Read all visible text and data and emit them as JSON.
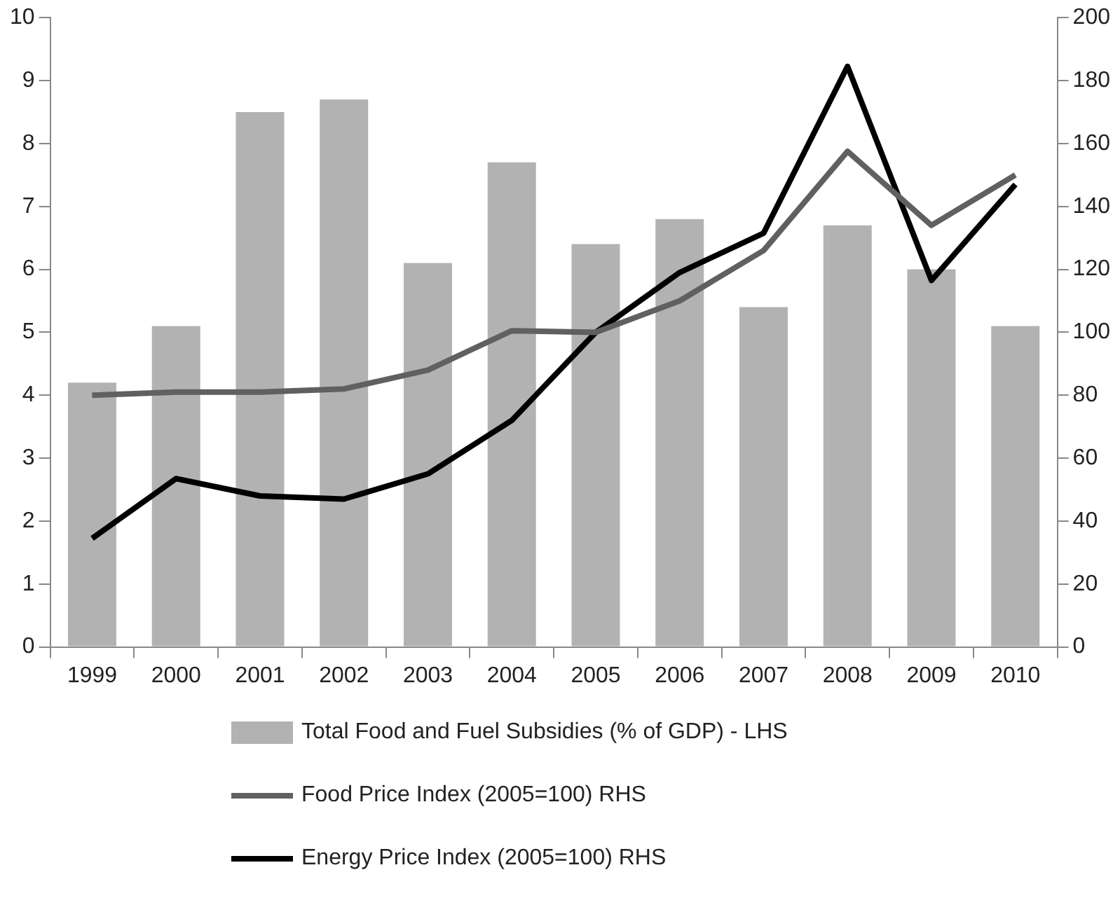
{
  "chart_data": {
    "type": "bar",
    "categories": [
      "1999",
      "2000",
      "2001",
      "2002",
      "2003",
      "2004",
      "2005",
      "2006",
      "2007",
      "2008",
      "2009",
      "2010"
    ],
    "series": [
      {
        "name": "Total Food and Fuel Subsidies (% of GDP) - LHS",
        "color": "#b2b2b2",
        "values": [
          4.2,
          5.1,
          8.5,
          8.7,
          6.1,
          7.7,
          6.4,
          6.8,
          5.4,
          6.7,
          6.0,
          5.1
        ]
      },
      {
        "name": "Food Price Index (2005=100) RHS",
        "type": "line",
        "axis": "y2",
        "color": "#606060",
        "values": [
          80,
          81,
          81,
          82,
          88,
          100.5,
          100,
          110,
          126,
          157.5,
          134,
          150
        ]
      },
      {
        "name": "Energy Price Index (2005=100) RHS",
        "type": "line",
        "axis": "y2",
        "color": "#000000",
        "values": [
          34.5,
          53.5,
          48,
          47,
          55,
          72,
          100,
          119,
          131.5,
          184.5,
          116.5,
          147
        ]
      }
    ],
    "ylim": [
      0,
      10
    ],
    "yticks": [
      0,
      1,
      2,
      3,
      4,
      5,
      6,
      7,
      8,
      9,
      10
    ],
    "y2lim": [
      0,
      200
    ],
    "y2ticks": [
      0,
      20,
      40,
      60,
      80,
      100,
      120,
      140,
      160,
      180,
      200
    ],
    "grid": false,
    "legend": "bottom",
    "marker": "none",
    "line_style": "solid"
  }
}
